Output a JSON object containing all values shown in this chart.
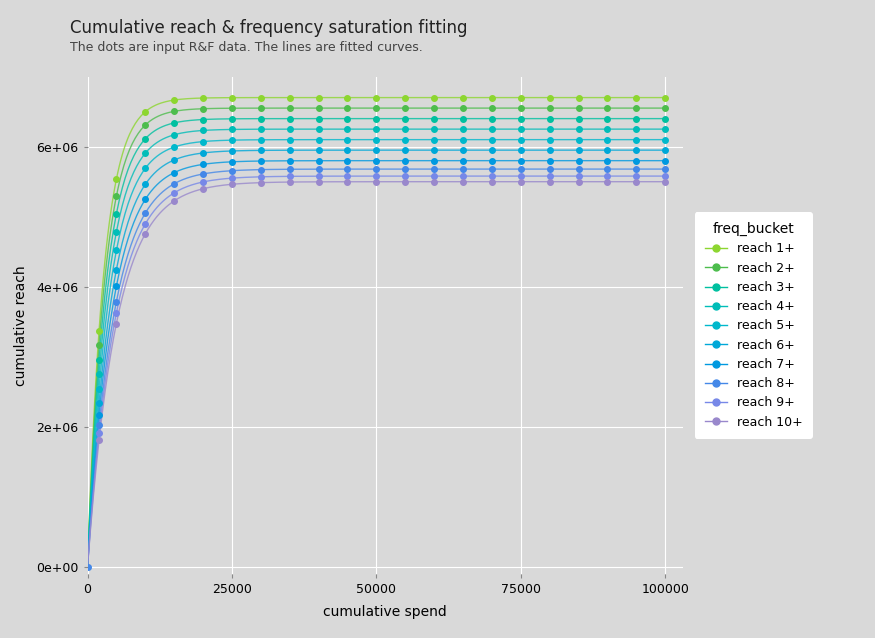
{
  "title": "Cumulative reach & frequency saturation fitting",
  "subtitle": "The dots are input R&F data. The lines are fitted curves.",
  "xlabel": "cumulative spend",
  "ylabel": "cumulative reach",
  "bg_color": "#d9d9d9",
  "xlim": [
    0,
    103000
  ],
  "ylim": [
    -100000,
    7000000
  ],
  "xticks": [
    0,
    25000,
    50000,
    75000,
    100000
  ],
  "yticks": [
    0,
    2000000,
    4000000,
    6000000
  ],
  "ytick_labels": [
    "0e+00",
    "2e+06",
    "4e+06",
    "6e+06"
  ],
  "xtick_labels": [
    "0",
    "25000",
    "50000",
    "75000",
    "100000"
  ],
  "freq_buckets": [
    "reach 1+",
    "reach 2+",
    "reach 3+",
    "reach 4+",
    "reach 5+",
    "reach 6+",
    "reach 7+",
    "reach 8+",
    "reach 9+",
    "reach 10+"
  ],
  "colors": [
    "#8DD630",
    "#4DBD4D",
    "#00C0A0",
    "#00BDB8",
    "#00B8CC",
    "#00A8D8",
    "#0099E0",
    "#4488E8",
    "#7788E8",
    "#9988CC"
  ],
  "saturation_params": [
    {
      "max_reach": 6700000,
      "k": 0.00035
    },
    {
      "max_reach": 6550000,
      "k": 0.00033
    },
    {
      "max_reach": 6400000,
      "k": 0.00031
    },
    {
      "max_reach": 6250000,
      "k": 0.00029
    },
    {
      "max_reach": 6100000,
      "k": 0.00027
    },
    {
      "max_reach": 5950000,
      "k": 0.00025
    },
    {
      "max_reach": 5800000,
      "k": 0.000235
    },
    {
      "max_reach": 5680000,
      "k": 0.00022
    },
    {
      "max_reach": 5580000,
      "k": 0.00021
    },
    {
      "max_reach": 5500000,
      "k": 0.0002
    }
  ],
  "dot_spends": [
    2000,
    5000,
    10000,
    15000,
    20000,
    25000,
    30000,
    35000,
    40000,
    45000,
    50000,
    55000,
    60000,
    65000,
    70000,
    75000,
    80000,
    85000,
    90000,
    95000,
    100000
  ],
  "line_spends_n": 400,
  "title_fontsize": 12,
  "subtitle_fontsize": 9,
  "axis_label_fontsize": 10,
  "tick_fontsize": 9,
  "legend_title_fontsize": 10,
  "legend_fontsize": 9
}
